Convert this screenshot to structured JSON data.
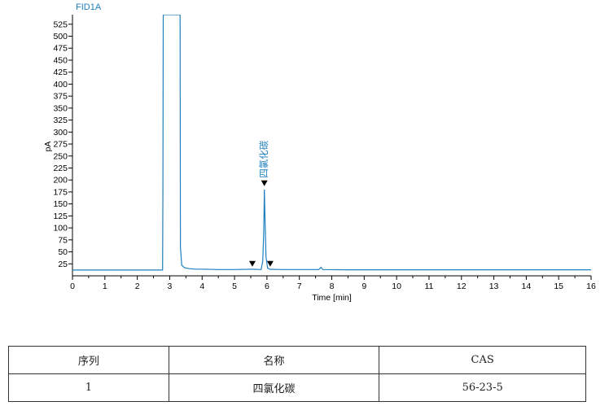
{
  "chart_data": {
    "type": "line",
    "signal_name": "FID1A",
    "xlabel": "Time [min]",
    "ylabel": "pA",
    "xlim": [
      0,
      16
    ],
    "ylim": [
      0,
      545
    ],
    "x_ticks": [
      0,
      1,
      2,
      3,
      4,
      5,
      6,
      7,
      8,
      9,
      10,
      11,
      12,
      13,
      14,
      15,
      16
    ],
    "y_ticks": [
      25,
      50,
      75,
      100,
      125,
      150,
      175,
      200,
      225,
      250,
      275,
      300,
      325,
      350,
      375,
      400,
      425,
      450,
      475,
      500,
      525
    ],
    "line_color": "#1f7fbf",
    "series": [
      {
        "points": [
          [
            0,
            12
          ],
          [
            2.78,
            12
          ],
          [
            2.79,
            185
          ],
          [
            2.8,
            545
          ],
          [
            3.32,
            545
          ],
          [
            3.33,
            60
          ],
          [
            3.37,
            22
          ],
          [
            3.45,
            17
          ],
          [
            3.6,
            15
          ],
          [
            3.8,
            14
          ],
          [
            4.0,
            14
          ],
          [
            4.5,
            13
          ],
          [
            5.0,
            13
          ],
          [
            5.4,
            13.5
          ],
          [
            5.5,
            14
          ],
          [
            5.6,
            13.5
          ],
          [
            5.82,
            13
          ],
          [
            5.87,
            30
          ],
          [
            5.9,
            90
          ],
          [
            5.92,
            180
          ],
          [
            5.94,
            120
          ],
          [
            5.97,
            40
          ],
          [
            6.02,
            16
          ],
          [
            6.1,
            13.5
          ],
          [
            6.5,
            13
          ],
          [
            7.0,
            13
          ],
          [
            7.6,
            13
          ],
          [
            7.67,
            18
          ],
          [
            7.72,
            13
          ],
          [
            8.5,
            12.5
          ],
          [
            10,
            12.5
          ],
          [
            12,
            12.5
          ],
          [
            14,
            12.5
          ],
          [
            16,
            12.5
          ]
        ]
      }
    ],
    "peaks": [
      {
        "time": 5.92,
        "value": 182,
        "label": "四氯化碳"
      }
    ],
    "markers": [
      {
        "time": 5.55,
        "value": 14
      },
      {
        "time": 5.92,
        "value": 182
      },
      {
        "time": 6.1,
        "value": 14
      }
    ]
  },
  "table": {
    "headers": [
      "序列",
      "名称",
      "CAS"
    ],
    "rows": [
      [
        "1",
        "四氯化碳",
        "56-23-5"
      ]
    ]
  }
}
